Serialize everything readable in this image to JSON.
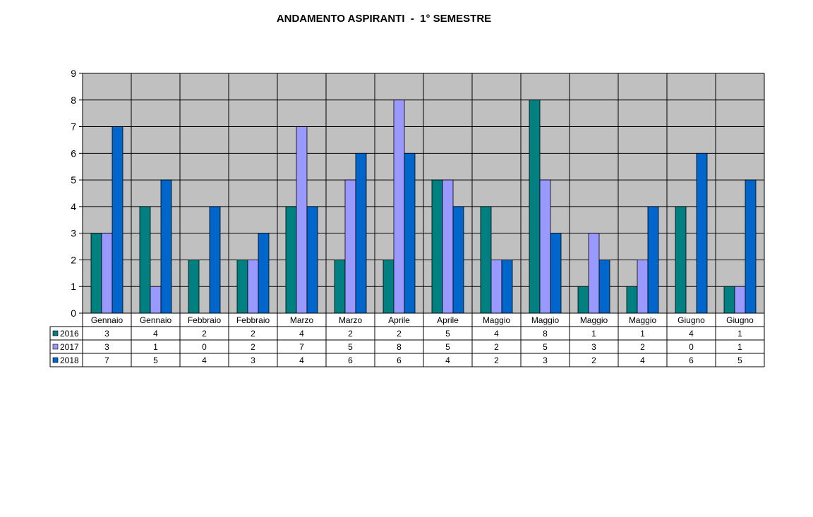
{
  "chart_data": {
    "type": "bar",
    "title": "ANDAMENTO ASPIRANTI  -  1° SEMESTRE",
    "xlabel": "",
    "ylabel": "",
    "ylim": [
      0,
      9
    ],
    "yticks": [
      0,
      1,
      2,
      3,
      4,
      5,
      6,
      7,
      8,
      9
    ],
    "grid": true,
    "legend": "data-table-left",
    "categories": [
      "Gennaio",
      "Gennaio",
      "Febbraio",
      "Febbraio",
      "Marzo",
      "Marzo",
      "Aprile",
      "Aprile",
      "Maggio",
      "Maggio",
      "Maggio",
      "Maggio",
      "Giugno",
      "Giugno"
    ],
    "series": [
      {
        "name": "2016",
        "color": "#008080",
        "values": [
          3,
          4,
          2,
          2,
          4,
          2,
          2,
          5,
          4,
          8,
          1,
          1,
          4,
          1
        ]
      },
      {
        "name": "2017",
        "color": "#9999FF",
        "values": [
          3,
          1,
          0,
          2,
          7,
          5,
          8,
          5,
          2,
          5,
          3,
          2,
          0,
          1
        ]
      },
      {
        "name": "2018",
        "color": "#0066CC",
        "values": [
          7,
          5,
          4,
          3,
          4,
          6,
          6,
          4,
          2,
          3,
          2,
          4,
          6,
          5
        ]
      }
    ]
  },
  "colors": {
    "plot_background": "#C0C0C0"
  }
}
